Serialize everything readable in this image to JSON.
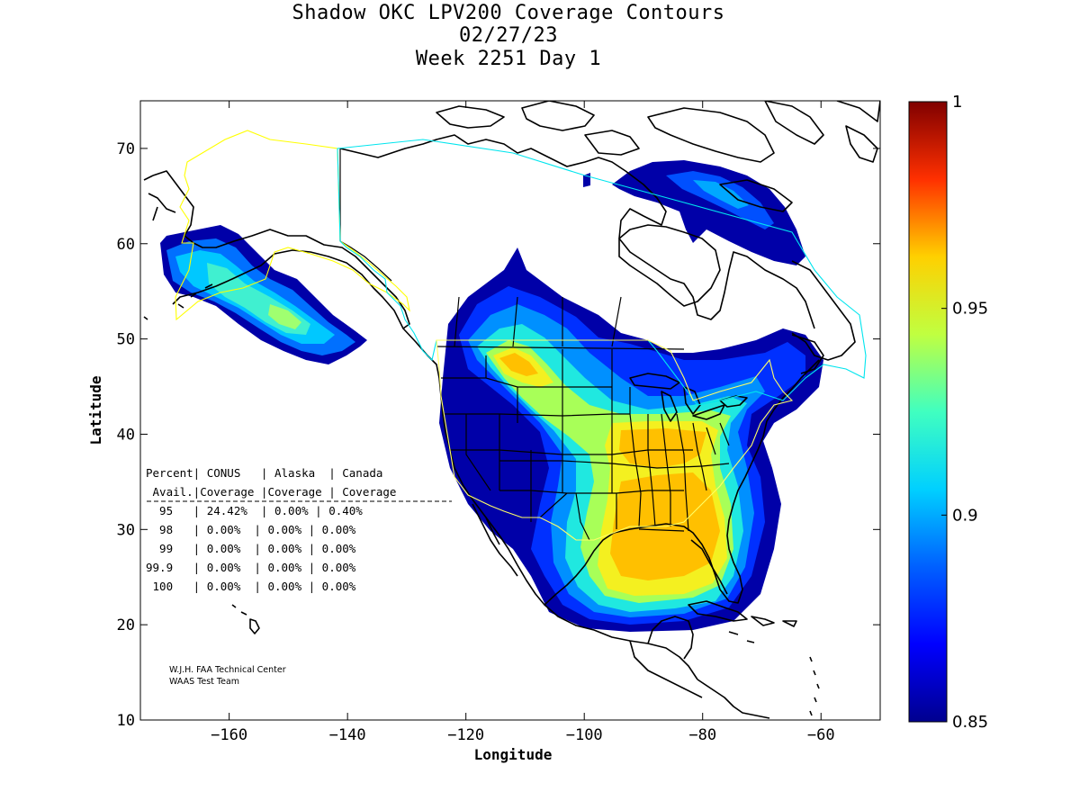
{
  "title": {
    "line1": "Shadow OKC LPV200 Coverage Contours",
    "line2": "02/27/23",
    "line3": "Week 2251 Day 1"
  },
  "axes": {
    "xlabel": "Longitude",
    "ylabel": "Latitude",
    "xlim": [
      -175,
      -50
    ],
    "ylim": [
      10,
      75
    ],
    "xticks": [
      -160,
      -140,
      -120,
      -100,
      -80,
      -60
    ],
    "yticks": [
      10,
      20,
      30,
      40,
      50,
      60,
      70
    ]
  },
  "colorbar": {
    "min": 0.85,
    "max": 1,
    "tick_values": [
      0.85,
      0.9,
      0.95,
      1
    ],
    "tick_labels": [
      "0.85",
      "0.9",
      "0.95",
      "1"
    ],
    "colormap": "jet",
    "colors": [
      "#00008f",
      "#0000ff",
      "#0080ff",
      "#00ffff",
      "#80ff80",
      "#ffff00",
      "#ff8000",
      "#ff0000",
      "#800000"
    ]
  },
  "stats_table": {
    "header1": "Percent| CONUS   | Alaska  | Canada",
    "header2": " Avail.|Coverage |Coverage | Coverage",
    "divider": "------------------------------------------------",
    "rows": [
      {
        "avail": "95",
        "text": "  95   | 24.42%  | 0.00% | 0.40%"
      },
      {
        "avail": "98",
        "text": "  98   | 0.00%  | 0.00% | 0.00%"
      },
      {
        "avail": "99",
        "text": "  99   | 0.00%  | 0.00% | 0.00%"
      },
      {
        "avail": "99.9",
        "text": "99.9   | 0.00%  | 0.00% | 0.00%"
      },
      {
        "avail": "100",
        "text": " 100   | 0.00%  | 0.00% | 0.00%"
      }
    ]
  },
  "credit": {
    "line1": "W.J.H. FAA Technical Center",
    "line2": "WAAS Test Team"
  },
  "colors": {
    "coast": "#000000",
    "conus_boundary": "#ffff66",
    "alaska_boundary": "#ffff00",
    "canada_boundary": "#00e5ee"
  }
}
